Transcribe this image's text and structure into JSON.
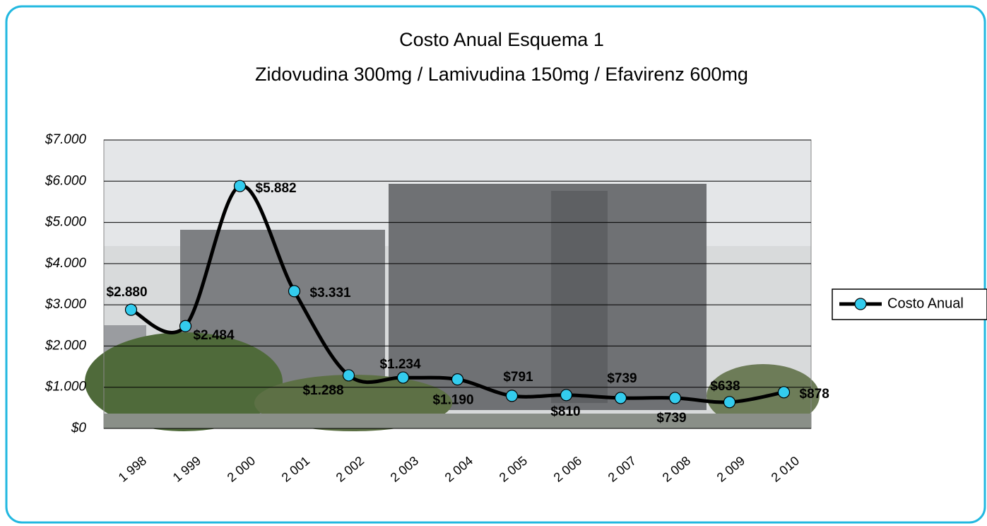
{
  "chart_data": {
    "type": "line",
    "title": "Costo Anual Esquema 1",
    "subtitle": "Zidovudina 300mg / Lamivudina 150mg / Efavirenz 600mg",
    "categories": [
      "1 998",
      "1 999",
      "2 000",
      "2 001",
      "2 002",
      "2 003",
      "2 004",
      "2 005",
      "2 006",
      "2 007",
      "2 008",
      "2 009",
      "2 010"
    ],
    "series": [
      {
        "name": "Costo Anual",
        "color": "#000000",
        "marker_color": "#33ccee",
        "values": [
          2880,
          2484,
          5882,
          3331,
          1288,
          1234,
          1190,
          791,
          810,
          739,
          739,
          638,
          878
        ],
        "value_labels": [
          "$2.880",
          "$2.484",
          "$5.882",
          "$3.331",
          "$1.288",
          "$1.234",
          "$1.190",
          "$791",
          "$810",
          "$739",
          "$739",
          "$638",
          "$878"
        ]
      }
    ],
    "ylim": [
      0,
      7000
    ],
    "yticks": [
      {
        "value": 0,
        "label": "$0"
      },
      {
        "value": 1000,
        "label": "$1.000"
      },
      {
        "value": 2000,
        "label": "$2.000"
      },
      {
        "value": 3000,
        "label": "$3.000"
      },
      {
        "value": 4000,
        "label": "$4.000"
      },
      {
        "value": 5000,
        "label": "$5.000"
      },
      {
        "value": 6000,
        "label": "$6.000"
      },
      {
        "value": 7000,
        "label": "$7.000"
      }
    ],
    "grid": true,
    "legend": "right"
  }
}
